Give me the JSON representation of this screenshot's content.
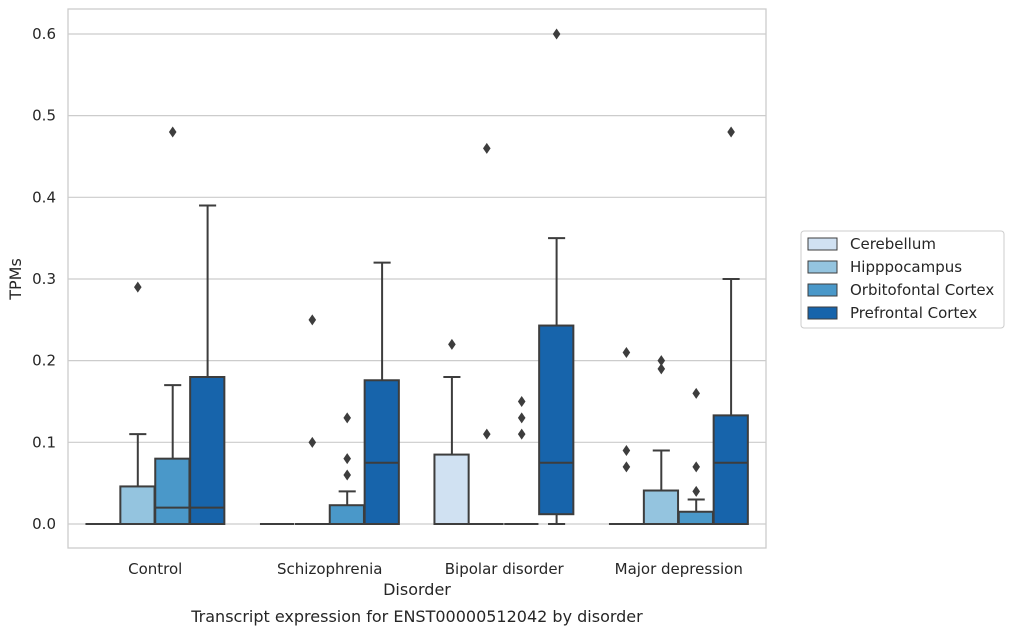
{
  "chart_data": {
    "type": "boxplot",
    "caption": "Transcript expression for ENST00000512042 by disorder",
    "xlabel": "Disorder",
    "ylabel": "TPMs",
    "ylim": [
      -0.03,
      0.63
    ],
    "yticks": [
      0.0,
      0.1,
      0.2,
      0.3,
      0.4,
      0.5,
      0.6
    ],
    "ytick_labels": [
      "0.0",
      "0.1",
      "0.2",
      "0.3",
      "0.4",
      "0.5",
      "0.6"
    ],
    "grid": "horizontal",
    "legend_position": "right",
    "categories": [
      "Control",
      "Schizophrenia",
      "Bipolar disorder",
      "Major depression"
    ],
    "series": [
      {
        "name": "Cerebellum",
        "color": "#d0e1f2",
        "boxes": [
          {
            "whislo": 0,
            "q1": 0,
            "med": 0,
            "q3": 0,
            "whishi": 0,
            "fliers": []
          },
          {
            "whislo": 0,
            "q1": 0,
            "med": 0,
            "q3": 0,
            "whishi": 0,
            "fliers": []
          },
          {
            "whislo": 0,
            "q1": 0,
            "med": 0,
            "q3": 0.085,
            "whishi": 0.18,
            "fliers": [
              0.22
            ]
          },
          {
            "whislo": 0,
            "q1": 0,
            "med": 0,
            "q3": 0,
            "whishi": 0,
            "fliers": [
              0.07,
              0.09,
              0.21
            ]
          }
        ]
      },
      {
        "name": "Hipppocampus",
        "color": "#94c4df",
        "boxes": [
          {
            "whislo": 0,
            "q1": 0,
            "med": 0,
            "q3": 0.046,
            "whishi": 0.11,
            "fliers": [
              0.29
            ]
          },
          {
            "whislo": 0,
            "q1": 0,
            "med": 0,
            "q3": 0,
            "whishi": 0,
            "fliers": [
              0.1,
              0.25
            ]
          },
          {
            "whislo": 0,
            "q1": 0,
            "med": 0,
            "q3": 0,
            "whishi": 0,
            "fliers": [
              0.11,
              0.46
            ]
          },
          {
            "whislo": 0,
            "q1": 0,
            "med": 0,
            "q3": 0.041,
            "whishi": 0.09,
            "fliers": [
              0.19,
              0.2
            ]
          }
        ]
      },
      {
        "name": "Orbitofontal Cortex",
        "color": "#4a98c9",
        "boxes": [
          {
            "whislo": 0,
            "q1": 0,
            "med": 0.02,
            "q3": 0.08,
            "whishi": 0.17,
            "fliers": [
              0.48
            ]
          },
          {
            "whislo": 0,
            "q1": 0,
            "med": 0,
            "q3": 0.023,
            "whishi": 0.04,
            "fliers": [
              0.06,
              0.08,
              0.13
            ]
          },
          {
            "whislo": 0,
            "q1": 0,
            "med": 0,
            "q3": 0,
            "whishi": 0,
            "fliers": [
              0.11,
              0.13,
              0.15
            ]
          },
          {
            "whislo": 0,
            "q1": 0,
            "med": 0,
            "q3": 0.015,
            "whishi": 0.03,
            "fliers": [
              0.04,
              0.07,
              0.16
            ]
          }
        ]
      },
      {
        "name": "Prefrontal Cortex",
        "color": "#1764ab",
        "boxes": [
          {
            "whislo": 0,
            "q1": 0,
            "med": 0.02,
            "q3": 0.18,
            "whishi": 0.39,
            "fliers": []
          },
          {
            "whislo": 0,
            "q1": 0,
            "med": 0.075,
            "q3": 0.176,
            "whishi": 0.32,
            "fliers": []
          },
          {
            "whislo": 0,
            "q1": 0.012,
            "med": 0.075,
            "q3": 0.243,
            "whishi": 0.35,
            "fliers": [
              0.6
            ]
          },
          {
            "whislo": 0,
            "q1": 0,
            "med": 0.075,
            "q3": 0.133,
            "whishi": 0.3,
            "fliers": [
              0.48
            ]
          }
        ]
      }
    ]
  }
}
